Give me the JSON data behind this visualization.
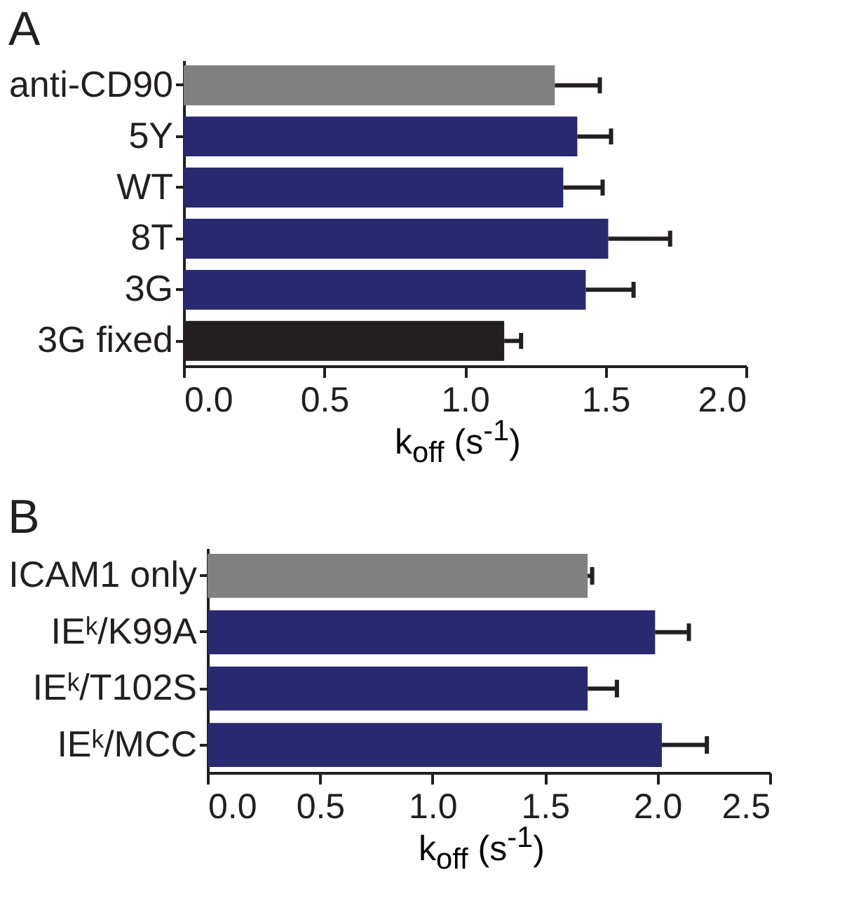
{
  "chart_data": [
    {
      "type": "bar",
      "title": "A",
      "orientation": "horizontal",
      "xlabel": "k$_{off}$ (s$^{-1}$)",
      "categories": [
        "anti-CD90",
        "5Y",
        "WT",
        "8T",
        "3G",
        "3G fixed"
      ],
      "values": [
        1.32,
        1.4,
        1.35,
        1.51,
        1.43,
        1.14
      ],
      "colors": [
        "#808080",
        "#28296e",
        "#28296e",
        "#28296e",
        "#28296e",
        "#231f20"
      ],
      "errors": [
        [
          1.32,
          1.48
        ],
        [
          1.4,
          1.52
        ],
        [
          1.35,
          1.49
        ],
        [
          1.51,
          1.73
        ],
        [
          1.43,
          1.6
        ],
        [
          1.14,
          1.2
        ]
      ],
      "xlim": [
        0,
        2
      ],
      "xticks": [
        {
          "value": 0,
          "label": "0.0"
        },
        {
          "value": 0.5,
          "label": "0.5"
        },
        {
          "value": 1,
          "label": "1.0"
        },
        {
          "value": 1.5,
          "label": "1.5"
        },
        {
          "value": 2,
          "label": "2.0"
        }
      ],
      "grid": false
    },
    {
      "type": "bar",
      "title": "B",
      "orientation": "horizontal",
      "xlabel": "k$_{off}$ (s$^{-1}$)",
      "categories": [
        "ICAM1 only",
        "IEᵏ/K99A",
        "IEᵏ/T102S",
        "IEᵏ/MCC"
      ],
      "values": [
        1.69,
        1.99,
        1.69,
        2.02
      ],
      "colors": [
        "#808080",
        "#28296e",
        "#28296e",
        "#28296e"
      ],
      "errors": [
        [
          1.69,
          1.71
        ],
        [
          1.99,
          2.14
        ],
        [
          1.69,
          1.82
        ],
        [
          2.02,
          2.22
        ]
      ],
      "xlim": [
        0,
        2.5
      ],
      "xticks": [
        {
          "value": 0,
          "label": "0.0"
        },
        {
          "value": 0.5,
          "label": "0.5"
        },
        {
          "value": 1,
          "label": "1.0"
        },
        {
          "value": 1.5,
          "label": "1.5"
        },
        {
          "value": 2,
          "label": "2.0"
        },
        {
          "value": 2.5,
          "label": "2.5"
        }
      ],
      "grid": false
    }
  ]
}
